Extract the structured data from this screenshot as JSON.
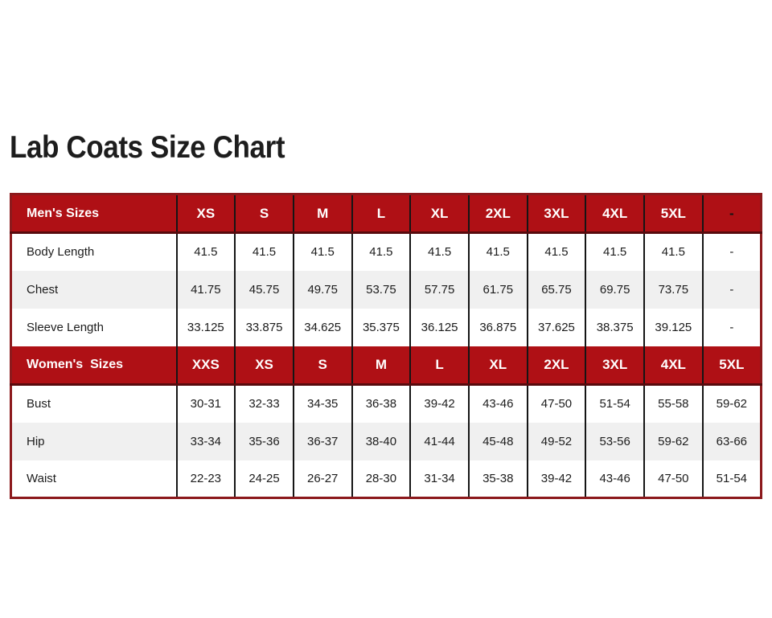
{
  "page": {
    "title": "Lab Coats Size Chart"
  },
  "colors": {
    "header_red": "#AF1015",
    "border_maroon": "#8C191C",
    "header_underline": "#570A0D",
    "line_black": "#151515",
    "row_gray": "#F0F0F0",
    "text_dark": "#1C1C1C",
    "header_text": "#FFFFFF",
    "dash_dark": "#141414"
  },
  "table": {
    "mens": {
      "header": {
        "label": "Men's Sizes",
        "sizes": [
          "XS",
          "S",
          "M",
          "L",
          "XL",
          "2XL",
          "3XL",
          "4XL",
          "5XL",
          "-"
        ]
      },
      "rows": [
        {
          "label": "Body Length",
          "values": [
            "41.5",
            "41.5",
            "41.5",
            "41.5",
            "41.5",
            "41.5",
            "41.5",
            "41.5",
            "41.5",
            "-"
          ]
        },
        {
          "label": "Chest",
          "values": [
            "41.75",
            "45.75",
            "49.75",
            "53.75",
            "57.75",
            "61.75",
            "65.75",
            "69.75",
            "73.75",
            "-"
          ]
        },
        {
          "label": "Sleeve Length",
          "values": [
            "33.125",
            "33.875",
            "34.625",
            "35.375",
            "36.125",
            "36.875",
            "37.625",
            "38.375",
            "39.125",
            "-"
          ]
        }
      ]
    },
    "womens": {
      "header": {
        "label": "Women's  Sizes",
        "sizes": [
          "XXS",
          "XS",
          "S",
          "M",
          "L",
          "XL",
          "2XL",
          "3XL",
          "4XL",
          "5XL"
        ]
      },
      "rows": [
        {
          "label": "Bust",
          "values": [
            "30-31",
            "32-33",
            "34-35",
            "36-38",
            "39-42",
            "43-46",
            "47-50",
            "51-54",
            "55-58",
            "59-62"
          ]
        },
        {
          "label": "Hip",
          "values": [
            "33-34",
            "35-36",
            "36-37",
            "38-40",
            "41-44",
            "45-48",
            "49-52",
            "53-56",
            "59-62",
            "63-66"
          ]
        },
        {
          "label": "Waist",
          "values": [
            "22-23",
            "24-25",
            "26-27",
            "28-30",
            "31-34",
            "35-38",
            "39-42",
            "43-46",
            "47-50",
            "51-54"
          ]
        }
      ]
    }
  }
}
